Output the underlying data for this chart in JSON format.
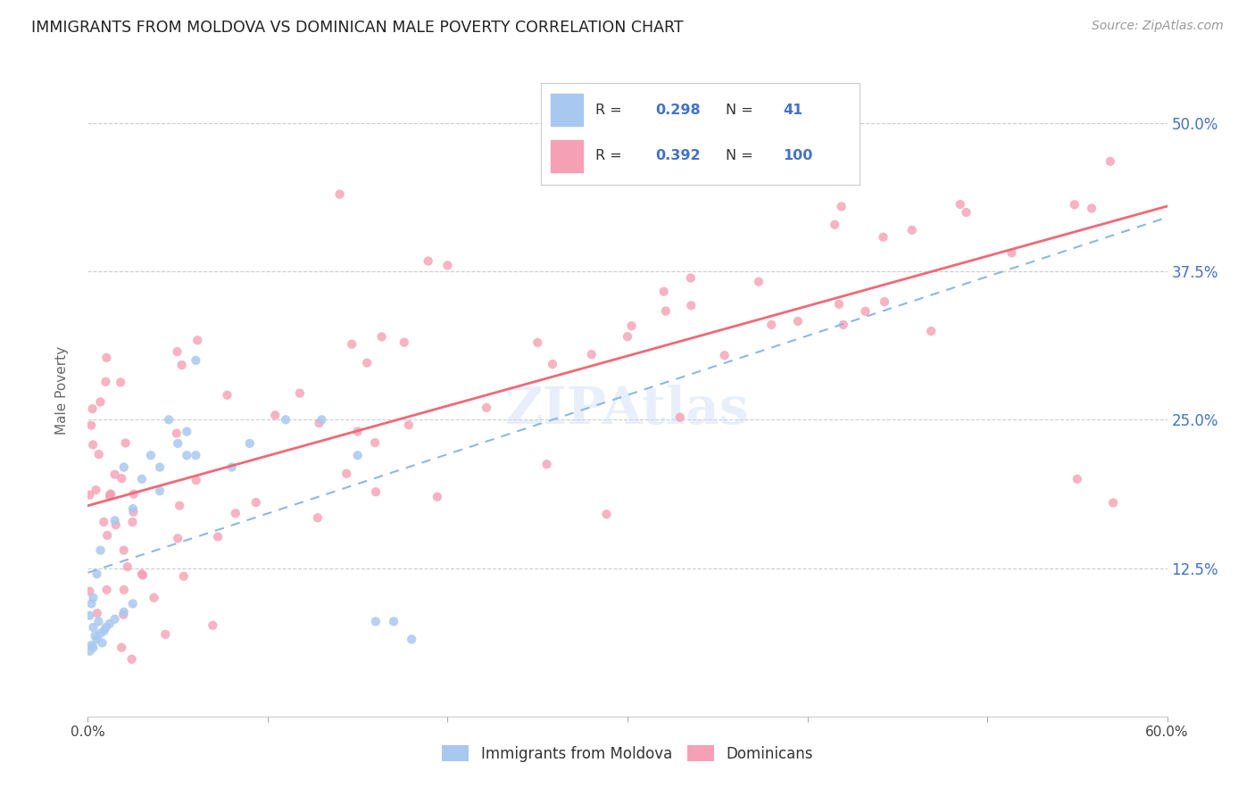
{
  "title": "IMMIGRANTS FROM MOLDOVA VS DOMINICAN MALE POVERTY CORRELATION CHART",
  "source": "Source: ZipAtlas.com",
  "ylabel": "Male Poverty",
  "legend_entry1": "Immigrants from Moldova",
  "legend_entry2": "Dominicans",
  "legend_r1": "0.298",
  "legend_n1": "41",
  "legend_r2": "0.392",
  "legend_n2": "100",
  "color_moldova": "#a8c8f0",
  "color_dominican": "#f5a0b5",
  "color_trendline_moldova": "#8ab8e8",
  "color_trendline_dominican": "#f06878",
  "color_text_blue": "#4472c4",
  "watermark_text": "ZIPAtlas",
  "xmin": 0.0,
  "xmax": 0.6,
  "ymin": 0.0,
  "ymax": 0.55,
  "ytick_values": [
    0.125,
    0.25,
    0.375,
    0.5
  ],
  "ytick_labels": [
    "12.5%",
    "25.0%",
    "37.5%",
    "50.0%"
  ],
  "xtick_show_left": "0.0%",
  "xtick_show_right": "60.0%"
}
